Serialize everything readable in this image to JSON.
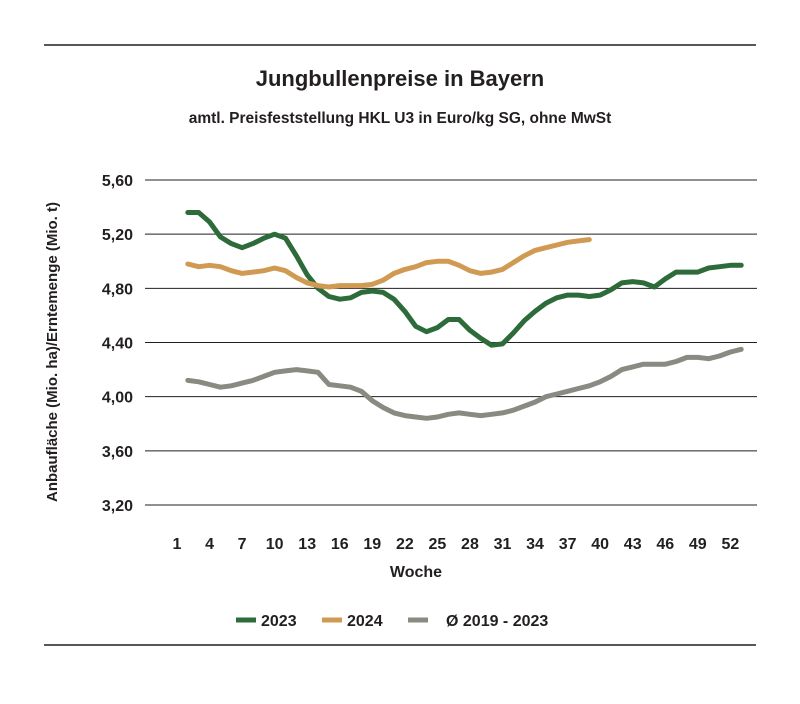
{
  "colors": {
    "s2023": "#2d6b3a",
    "s2024": "#d09a52",
    "savg": "#8a8a82",
    "text": "#231f20",
    "grid": "#231f20"
  },
  "chart_data": {
    "type": "line",
    "title": "Jungbullenpreise in Bayern",
    "subtitle": "amtl. Preisfeststellung HKL U3 in Euro/kg SG, ohne MwSt",
    "xlabel": "Woche",
    "ylabel": "Anbaufläche (Mio. ha)/Erntemenge (Mio. t)",
    "ylim": [
      3.2,
      5.6
    ],
    "yticks": [
      "5,60",
      "5,20",
      "4,80",
      "4,40",
      "4,00",
      "3,60",
      "3,20"
    ],
    "ytick_values": [
      5.6,
      5.2,
      4.8,
      4.4,
      4.0,
      3.6,
      3.2
    ],
    "xticks": [
      "1",
      "4",
      "7",
      "10",
      "13",
      "16",
      "19",
      "22",
      "25",
      "28",
      "31",
      "34",
      "37",
      "40",
      "43",
      "46",
      "49",
      "52"
    ],
    "xtick_values": [
      1,
      4,
      7,
      10,
      13,
      16,
      19,
      22,
      25,
      28,
      31,
      34,
      37,
      40,
      43,
      46,
      49,
      52
    ],
    "grid": true,
    "legend": "bottom",
    "series": [
      {
        "name": "2023",
        "color_key": "s2023",
        "points": [
          [
            2,
            5.36
          ],
          [
            3,
            5.36
          ],
          [
            4,
            5.29
          ],
          [
            5,
            5.18
          ],
          [
            6,
            5.13
          ],
          [
            7,
            5.1
          ],
          [
            8,
            5.13
          ],
          [
            9,
            5.17
          ],
          [
            10,
            5.2
          ],
          [
            11,
            5.17
          ],
          [
            12,
            5.04
          ],
          [
            13,
            4.9
          ],
          [
            14,
            4.8
          ],
          [
            15,
            4.74
          ],
          [
            16,
            4.72
          ],
          [
            17,
            4.73
          ],
          [
            18,
            4.77
          ],
          [
            19,
            4.78
          ],
          [
            20,
            4.77
          ],
          [
            21,
            4.72
          ],
          [
            22,
            4.63
          ],
          [
            23,
            4.52
          ],
          [
            24,
            4.48
          ],
          [
            25,
            4.51
          ],
          [
            26,
            4.57
          ],
          [
            27,
            4.57
          ],
          [
            28,
            4.49
          ],
          [
            29,
            4.43
          ],
          [
            30,
            4.38
          ],
          [
            31,
            4.39
          ],
          [
            32,
            4.47
          ],
          [
            33,
            4.56
          ],
          [
            34,
            4.63
          ],
          [
            35,
            4.69
          ],
          [
            36,
            4.73
          ],
          [
            37,
            4.75
          ],
          [
            38,
            4.75
          ],
          [
            39,
            4.74
          ],
          [
            40,
            4.75
          ],
          [
            41,
            4.79
          ],
          [
            42,
            4.84
          ],
          [
            43,
            4.85
          ],
          [
            44,
            4.84
          ],
          [
            45,
            4.81
          ],
          [
            46,
            4.87
          ],
          [
            47,
            4.92
          ],
          [
            48,
            4.92
          ],
          [
            49,
            4.92
          ],
          [
            50,
            4.95
          ],
          [
            51,
            4.96
          ],
          [
            52,
            4.97
          ],
          [
            53,
            4.97
          ]
        ]
      },
      {
        "name": "2024",
        "color_key": "s2024",
        "points": [
          [
            2,
            4.98
          ],
          [
            3,
            4.96
          ],
          [
            4,
            4.97
          ],
          [
            5,
            4.96
          ],
          [
            6,
            4.93
          ],
          [
            7,
            4.91
          ],
          [
            8,
            4.92
          ],
          [
            9,
            4.93
          ],
          [
            10,
            4.95
          ],
          [
            11,
            4.93
          ],
          [
            12,
            4.88
          ],
          [
            13,
            4.84
          ],
          [
            14,
            4.82
          ],
          [
            15,
            4.81
          ],
          [
            16,
            4.82
          ],
          [
            17,
            4.82
          ],
          [
            18,
            4.82
          ],
          [
            19,
            4.83
          ],
          [
            20,
            4.86
          ],
          [
            21,
            4.91
          ],
          [
            22,
            4.94
          ],
          [
            23,
            4.96
          ],
          [
            24,
            4.99
          ],
          [
            25,
            5.0
          ],
          [
            26,
            5.0
          ],
          [
            27,
            4.97
          ],
          [
            28,
            4.93
          ],
          [
            29,
            4.91
          ],
          [
            30,
            4.92
          ],
          [
            31,
            4.94
          ],
          [
            32,
            4.99
          ],
          [
            33,
            5.04
          ],
          [
            34,
            5.08
          ],
          [
            35,
            5.1
          ],
          [
            36,
            5.12
          ],
          [
            37,
            5.14
          ],
          [
            38,
            5.15
          ],
          [
            39,
            5.16
          ]
        ]
      },
      {
        "name": "Ø 2019 - 2023",
        "color_key": "savg",
        "points": [
          [
            2,
            4.12
          ],
          [
            3,
            4.11
          ],
          [
            4,
            4.09
          ],
          [
            5,
            4.07
          ],
          [
            6,
            4.08
          ],
          [
            7,
            4.1
          ],
          [
            8,
            4.12
          ],
          [
            9,
            4.15
          ],
          [
            10,
            4.18
          ],
          [
            11,
            4.19
          ],
          [
            12,
            4.2
          ],
          [
            13,
            4.19
          ],
          [
            14,
            4.18
          ],
          [
            15,
            4.09
          ],
          [
            16,
            4.08
          ],
          [
            17,
            4.07
          ],
          [
            18,
            4.04
          ],
          [
            19,
            3.97
          ],
          [
            20,
            3.92
          ],
          [
            21,
            3.88
          ],
          [
            22,
            3.86
          ],
          [
            23,
            3.85
          ],
          [
            24,
            3.84
          ],
          [
            25,
            3.85
          ],
          [
            26,
            3.87
          ],
          [
            27,
            3.88
          ],
          [
            28,
            3.87
          ],
          [
            29,
            3.86
          ],
          [
            30,
            3.87
          ],
          [
            31,
            3.88
          ],
          [
            32,
            3.9
          ],
          [
            33,
            3.93
          ],
          [
            34,
            3.96
          ],
          [
            35,
            4.0
          ],
          [
            36,
            4.02
          ],
          [
            37,
            4.04
          ],
          [
            38,
            4.06
          ],
          [
            39,
            4.08
          ],
          [
            40,
            4.11
          ],
          [
            41,
            4.15
          ],
          [
            42,
            4.2
          ],
          [
            43,
            4.22
          ],
          [
            44,
            4.24
          ],
          [
            45,
            4.24
          ],
          [
            46,
            4.24
          ],
          [
            47,
            4.26
          ],
          [
            48,
            4.29
          ],
          [
            49,
            4.29
          ],
          [
            50,
            4.28
          ],
          [
            51,
            4.3
          ],
          [
            52,
            4.33
          ],
          [
            53,
            4.35
          ]
        ]
      }
    ]
  }
}
